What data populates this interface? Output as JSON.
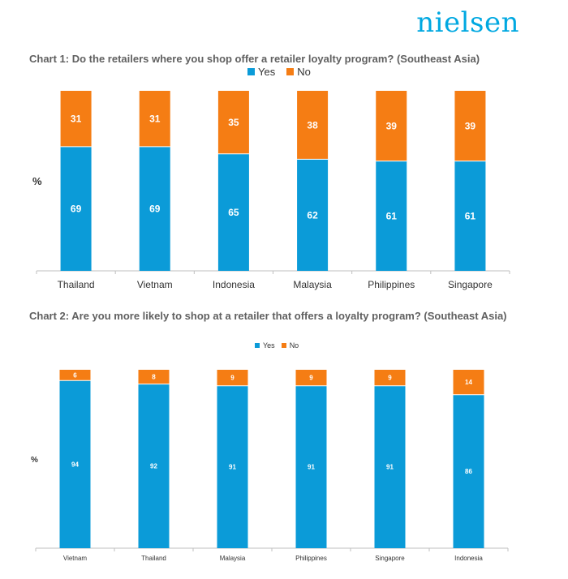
{
  "logo": {
    "text": "nielsen"
  },
  "colors": {
    "yes": "#0b9bd8",
    "no": "#f57d14",
    "axis": "#bfbfbf"
  },
  "chart_data": [
    {
      "type": "bar",
      "stacked": true,
      "title": "Chart 1: Do the retailers where you shop offer a retailer loyalty program? (Southeast Asia)",
      "ylabel": "%",
      "xlabel": "",
      "ylim": [
        0,
        100
      ],
      "grid": false,
      "legend_position": "top",
      "categories": [
        "Thailand",
        "Vietnam",
        "Indonesia",
        "Malaysia",
        "Philippines",
        "Singapore"
      ],
      "series": [
        {
          "name": "Yes",
          "values": [
            69,
            69,
            65,
            62,
            61,
            61
          ]
        },
        {
          "name": "No",
          "values": [
            31,
            31,
            35,
            38,
            39,
            39
          ]
        }
      ]
    },
    {
      "type": "bar",
      "stacked": true,
      "title": "Chart 2: Are you more likely to shop at a retailer that offers a loyalty program? (Southeast Asia)",
      "ylabel": "%",
      "xlabel": "",
      "ylim": [
        0,
        100
      ],
      "grid": false,
      "legend_position": "top",
      "categories": [
        "Vietnam",
        "Thailand",
        "Malaysia",
        "Philippines",
        "Singapore",
        "Indonesia"
      ],
      "series": [
        {
          "name": "Yes",
          "values": [
            94,
            92,
            91,
            91,
            91,
            86
          ]
        },
        {
          "name": "No",
          "values": [
            6,
            8,
            9,
            9,
            9,
            14
          ]
        }
      ]
    }
  ]
}
